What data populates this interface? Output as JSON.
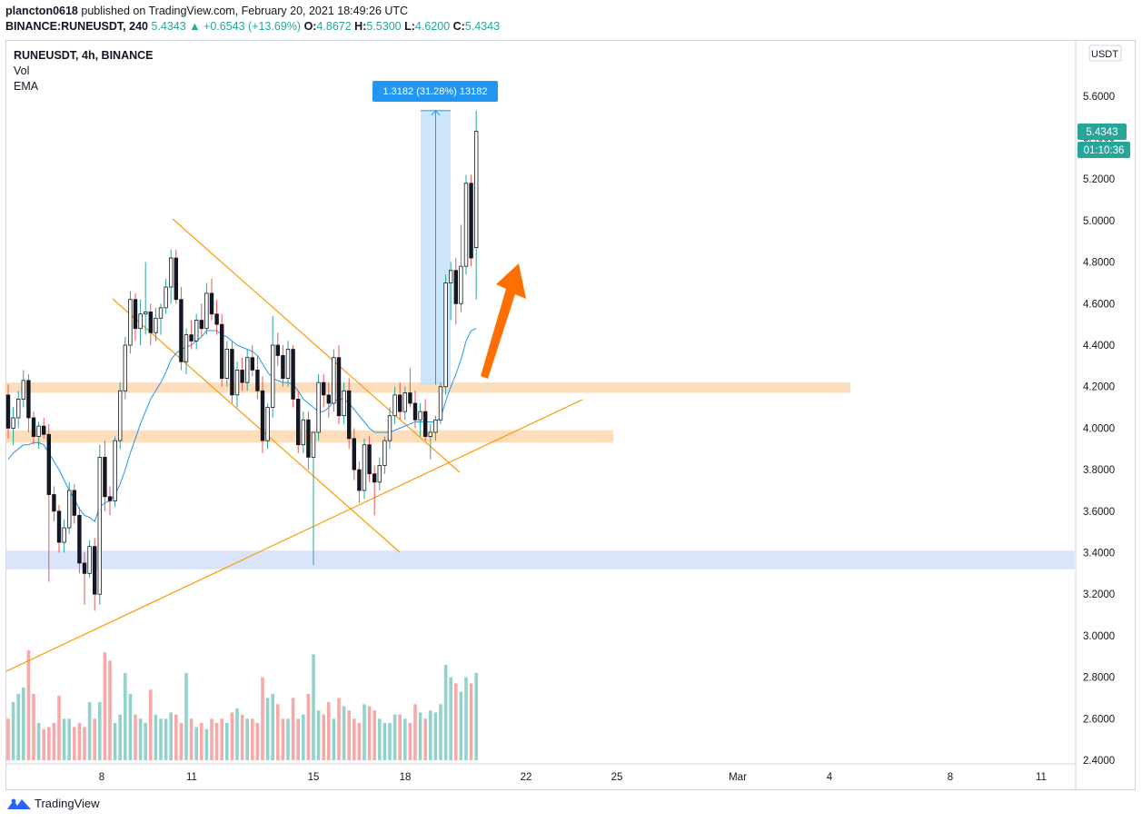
{
  "header": {
    "publisher": "plancton0618",
    "published_text": "published on TradingView.com, February 20, 2021 18:49:26 UTC",
    "symbol": "BINANCE:RUNEUSDT, 240",
    "last": "5.4343",
    "arrow": "▲",
    "change": "+0.6543 (+13.69%)",
    "o_label": "O:",
    "o_value": "4.8672",
    "h_label": "H:",
    "h_value": "5.5300",
    "l_label": "L:",
    "l_value": "4.6200",
    "c_label": "C:",
    "c_value": "5.4343"
  },
  "legend": {
    "title": "RUNEUSDT, 4h, BINANCE",
    "vol": "Vol",
    "ema": "EMA"
  },
  "currency_badge": "USDT",
  "price_badge": "5.4343",
  "countdown_badge": "01:10:36",
  "measure_label": "1.3182 (31.28%) 13182",
  "footer": {
    "brand": "TradingView"
  },
  "colors": {
    "up": "#26a69a",
    "down": "#ef5350",
    "ema": "#2196f3",
    "trend": "#ff9800",
    "zone_orange": "#fbd7b0",
    "zone_blue": "#d3e1fb",
    "arrow": "#ff6f00",
    "measure": "#2196f3"
  },
  "chart_data": {
    "type": "candlestick",
    "x_ticks": [
      "8",
      "11",
      "15",
      "18",
      "22",
      "25",
      "Mar",
      "4",
      "8",
      "11"
    ],
    "y_ticks": [
      "2.4000",
      "2.6000",
      "2.8000",
      "3.0000",
      "3.2000",
      "3.4000",
      "3.6000",
      "3.8000",
      "4.0000",
      "4.2000",
      "4.4000",
      "4.6000",
      "4.8000",
      "5.0000",
      "5.2000",
      "5.4000",
      "5.6000"
    ],
    "ylim": [
      2.38,
      5.75
    ],
    "series": [
      {
        "name": "candles",
        "values": [
          [
            4.16,
            4.21,
            3.95,
            4.0
          ],
          [
            4.0,
            4.1,
            3.92,
            4.05
          ],
          [
            4.05,
            4.18,
            4.0,
            4.14
          ],
          [
            4.14,
            4.28,
            4.1,
            4.23
          ],
          [
            4.23,
            4.26,
            3.98,
            4.05
          ],
          [
            4.05,
            4.08,
            3.92,
            3.96
          ],
          [
            3.96,
            4.03,
            3.9,
            4.01
          ],
          [
            4.01,
            4.05,
            3.95,
            3.97
          ],
          [
            3.97,
            4.02,
            3.26,
            3.68
          ],
          [
            3.68,
            3.72,
            3.55,
            3.6
          ],
          [
            3.6,
            3.63,
            3.4,
            3.45
          ],
          [
            3.45,
            3.56,
            3.4,
            3.52
          ],
          [
            3.52,
            3.74,
            3.49,
            3.7
          ],
          [
            3.7,
            3.73,
            3.54,
            3.58
          ],
          [
            3.58,
            3.62,
            3.3,
            3.35
          ],
          [
            3.35,
            3.4,
            3.15,
            3.3
          ],
          [
            3.3,
            3.46,
            3.28,
            3.43
          ],
          [
            3.43,
            3.47,
            3.12,
            3.2
          ],
          [
            3.2,
            3.92,
            3.15,
            3.86
          ],
          [
            3.86,
            3.94,
            3.6,
            3.67
          ],
          [
            3.67,
            3.72,
            3.58,
            3.65
          ],
          [
            3.65,
            3.96,
            3.62,
            3.94
          ],
          [
            3.94,
            4.22,
            3.9,
            4.18
          ],
          [
            4.18,
            4.44,
            4.14,
            4.4
          ],
          [
            4.4,
            4.66,
            4.36,
            4.62
          ],
          [
            4.62,
            4.65,
            4.42,
            4.48
          ],
          [
            4.48,
            4.62,
            4.4,
            4.55
          ],
          [
            4.55,
            4.8,
            4.45,
            4.56
          ],
          [
            4.56,
            4.6,
            4.4,
            4.46
          ],
          [
            4.46,
            4.58,
            4.42,
            4.53
          ],
          [
            4.53,
            4.6,
            4.45,
            4.58
          ],
          [
            4.58,
            4.72,
            4.55,
            4.68
          ],
          [
            4.68,
            4.86,
            4.6,
            4.82
          ],
          [
            4.82,
            4.86,
            4.6,
            4.62
          ],
          [
            4.62,
            4.68,
            4.28,
            4.32
          ],
          [
            4.32,
            4.48,
            4.26,
            4.45
          ],
          [
            4.45,
            4.52,
            4.38,
            4.42
          ],
          [
            4.42,
            4.55,
            4.38,
            4.52
          ],
          [
            4.52,
            4.6,
            4.44,
            4.48
          ],
          [
            4.48,
            4.7,
            4.45,
            4.65
          ],
          [
            4.65,
            4.72,
            4.52,
            4.55
          ],
          [
            4.55,
            4.62,
            4.45,
            4.5
          ],
          [
            4.5,
            4.55,
            4.2,
            4.24
          ],
          [
            4.24,
            4.42,
            4.2,
            4.38
          ],
          [
            4.38,
            4.42,
            4.12,
            4.16
          ],
          [
            4.16,
            4.32,
            4.1,
            4.28
          ],
          [
            4.28,
            4.34,
            4.18,
            4.22
          ],
          [
            4.22,
            4.38,
            4.18,
            4.34
          ],
          [
            4.34,
            4.4,
            4.25,
            4.28
          ],
          [
            4.28,
            4.35,
            4.14,
            4.18
          ],
          [
            4.18,
            4.25,
            3.88,
            3.94
          ],
          [
            3.94,
            4.12,
            3.9,
            4.1
          ],
          [
            4.1,
            4.54,
            4.05,
            4.4
          ],
          [
            4.4,
            4.46,
            4.3,
            4.35
          ],
          [
            4.35,
            4.4,
            4.2,
            4.24
          ],
          [
            4.24,
            4.42,
            4.2,
            4.38
          ],
          [
            4.38,
            4.4,
            4.1,
            4.14
          ],
          [
            4.14,
            4.18,
            3.88,
            3.92
          ],
          [
            3.92,
            4.08,
            3.88,
            4.04
          ],
          [
            4.04,
            4.08,
            3.8,
            3.86
          ],
          [
            3.86,
            3.9,
            3.34,
            3.98
          ],
          [
            3.98,
            4.26,
            3.94,
            4.22
          ],
          [
            4.22,
            4.26,
            4.1,
            4.16
          ],
          [
            4.16,
            4.22,
            4.05,
            4.12
          ],
          [
            4.12,
            4.38,
            4.08,
            4.34
          ],
          [
            4.34,
            4.4,
            4.02,
            4.06
          ],
          [
            4.06,
            4.22,
            4.02,
            4.18
          ],
          [
            4.18,
            4.24,
            3.9,
            3.95
          ],
          [
            3.95,
            4.0,
            3.75,
            3.8
          ],
          [
            3.8,
            3.84,
            3.64,
            3.7
          ],
          [
            3.7,
            3.95,
            3.66,
            3.92
          ],
          [
            3.92,
            3.96,
            3.74,
            3.78
          ],
          [
            3.78,
            3.82,
            3.58,
            3.74
          ],
          [
            3.74,
            3.86,
            3.7,
            3.82
          ],
          [
            3.82,
            3.96,
            3.78,
            3.94
          ],
          [
            3.94,
            4.1,
            3.9,
            4.06
          ],
          [
            4.06,
            4.2,
            4.02,
            4.16
          ],
          [
            4.16,
            4.22,
            4.04,
            4.08
          ],
          [
            4.08,
            4.2,
            4.04,
            4.17
          ],
          [
            4.17,
            4.29,
            4.1,
            4.12
          ],
          [
            4.12,
            4.18,
            4.0,
            4.04
          ],
          [
            4.04,
            4.12,
            3.96,
            4.08
          ],
          [
            4.08,
            4.14,
            3.94,
            3.96
          ],
          [
            3.96,
            4.02,
            3.85,
            3.98
          ],
          [
            3.98,
            4.06,
            3.94,
            4.04
          ],
          [
            4.04,
            4.22,
            4.02,
            4.2
          ],
          [
            4.2,
            4.74,
            4.16,
            4.7
          ],
          [
            4.7,
            4.8,
            4.52,
            4.76
          ],
          [
            4.76,
            4.82,
            4.5,
            4.6
          ],
          [
            4.6,
            4.98,
            4.56,
            4.78
          ],
          [
            4.78,
            5.22,
            4.74,
            5.18
          ],
          [
            5.18,
            5.22,
            4.78,
            4.82
          ],
          [
            4.87,
            5.53,
            4.62,
            5.43
          ]
        ]
      },
      {
        "name": "EMA",
        "values": [
          3.85,
          3.88,
          3.9,
          3.92,
          3.92,
          3.93,
          3.93,
          3.92,
          3.88,
          3.84,
          3.8,
          3.75,
          3.7,
          3.66,
          3.61,
          3.58,
          3.57,
          3.55,
          3.62,
          3.64,
          3.65,
          3.68,
          3.73,
          3.8,
          3.88,
          3.95,
          4.02,
          4.08,
          4.14,
          4.18,
          4.22,
          4.27,
          4.33,
          4.36,
          4.38,
          4.39,
          4.4,
          4.42,
          4.44,
          4.47,
          4.47,
          4.47,
          4.45,
          4.44,
          4.42,
          4.4,
          4.39,
          4.38,
          4.37,
          4.35,
          4.31,
          4.27,
          4.24,
          4.23,
          4.22,
          4.22,
          4.21,
          4.18,
          4.14,
          4.12,
          4.1,
          4.08,
          4.08,
          4.1,
          4.13,
          4.14,
          4.14,
          4.12,
          4.09,
          4.06,
          4.03,
          4.0,
          3.98,
          3.98,
          3.98,
          3.98,
          3.99,
          4.0,
          4.01,
          4.02,
          4.03,
          4.03,
          4.03,
          4.03,
          4.03,
          4.05,
          4.13,
          4.2,
          4.26,
          4.33,
          4.42,
          4.47,
          4.48
        ]
      },
      {
        "name": "Vol",
        "values": [
          2.6,
          2.68,
          2.72,
          2.75,
          2.93,
          2.72,
          2.58,
          2.55,
          2.56,
          2.58,
          2.71,
          2.6,
          2.6,
          2.56,
          2.58,
          2.56,
          2.68,
          2.6,
          2.68,
          2.92,
          2.88,
          2.58,
          2.62,
          2.82,
          2.72,
          2.62,
          2.6,
          2.58,
          2.74,
          2.62,
          2.6,
          2.6,
          2.63,
          2.62,
          2.58,
          2.82,
          2.6,
          2.56,
          2.58,
          2.55,
          2.6,
          2.58,
          2.6,
          2.58,
          2.63,
          2.65,
          2.62,
          2.6,
          2.6,
          2.58,
          2.8,
          2.7,
          2.72,
          2.67,
          2.6,
          2.6,
          2.7,
          2.6,
          2.62,
          2.72,
          2.91,
          2.64,
          2.62,
          2.68,
          2.6,
          2.7,
          2.66,
          2.64,
          2.6,
          2.58,
          2.67,
          2.66,
          2.64,
          2.6,
          2.58,
          2.58,
          2.62,
          2.62,
          2.6,
          2.58,
          2.67,
          2.63,
          2.6,
          2.64,
          2.63,
          2.67,
          2.86,
          2.8,
          2.77,
          2.73,
          2.8,
          2.77,
          2.82
        ]
      }
    ],
    "zones": [
      {
        "from": 4.17,
        "to": 4.22
      },
      {
        "from": 3.93,
        "to": 3.99
      },
      {
        "from": 3.32,
        "to": 3.41
      }
    ],
    "measure": {
      "from": 4.21,
      "to": 5.53
    }
  }
}
